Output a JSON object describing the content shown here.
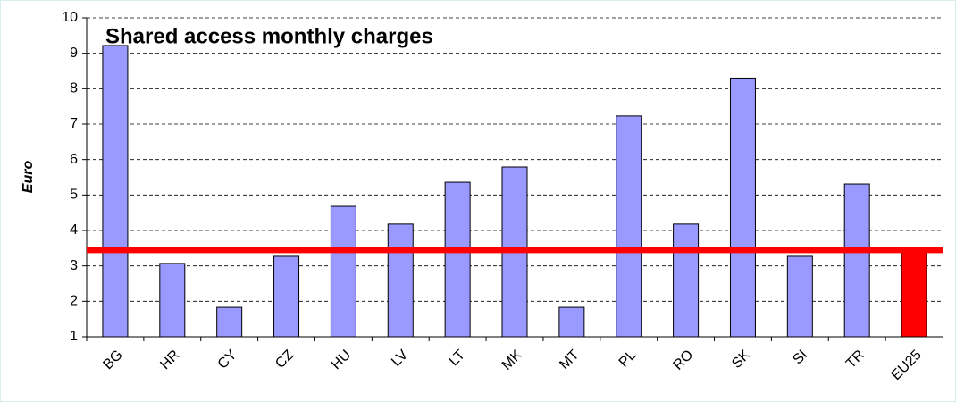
{
  "chart_data": {
    "type": "bar",
    "title": "Shared access monthly charges",
    "ylabel": "Euro",
    "categories": [
      "BG",
      "HR",
      "CY",
      "CZ",
      "HU",
      "LV",
      "LT",
      "MK",
      "MT",
      "PL",
      "RO",
      "SK",
      "SI",
      "TR",
      "EU25"
    ],
    "values": [
      9.22,
      3.07,
      1.83,
      3.27,
      4.68,
      4.18,
      5.36,
      5.79,
      1.83,
      7.23,
      4.18,
      8.3,
      3.27,
      5.31,
      3.45
    ],
    "colors": [
      "#9999ff",
      "#9999ff",
      "#9999ff",
      "#9999ff",
      "#9999ff",
      "#9999ff",
      "#9999ff",
      "#9999ff",
      "#9999ff",
      "#9999ff",
      "#9999ff",
      "#9999ff",
      "#9999ff",
      "#9999ff",
      "#ff0000"
    ],
    "reference_line_color": "#ff0000",
    "ylim": [
      1,
      10
    ],
    "yticks": [
      1,
      2,
      3,
      4,
      5,
      6,
      7,
      8,
      9,
      10
    ],
    "grid": true
  }
}
